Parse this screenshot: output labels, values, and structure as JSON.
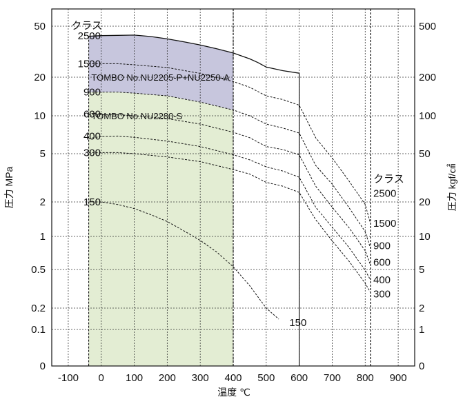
{
  "chart_data": {
    "type": "line",
    "title": "",
    "xlabel": "温度 ℃",
    "ylabel_left": "圧力 MPa",
    "ylabel_right": "圧力 kgf/㎠",
    "x_range": [
      -150,
      950
    ],
    "x_ticks": [
      -100,
      0,
      100,
      200,
      300,
      400,
      500,
      600,
      700,
      800,
      900
    ],
    "y_scale": "log",
    "y_ticks_left": [
      {
        "v": 50,
        "label": "50"
      },
      {
        "v": 20,
        "label": "20"
      },
      {
        "v": 10,
        "label": "10"
      },
      {
        "v": 5,
        "label": "5"
      },
      {
        "v": 2,
        "label": "2"
      },
      {
        "v": 1,
        "label": "1"
      },
      {
        "v": 0.5,
        "label": "0.5"
      },
      {
        "v": 0.2,
        "label": "0.2"
      },
      {
        "v": 0.1,
        "label": "0.1"
      },
      {
        "v": 0.03,
        "label": "0"
      }
    ],
    "y_ticks_right": [
      {
        "v": 50,
        "label": "500"
      },
      {
        "v": 20,
        "label": "200"
      },
      {
        "v": 10,
        "label": "100"
      },
      {
        "v": 5,
        "label": "50"
      },
      {
        "v": 2,
        "label": "20"
      },
      {
        "v": 1,
        "label": "10"
      },
      {
        "v": 0.5,
        "label": "5"
      },
      {
        "v": 0.2,
        "label": "2"
      },
      {
        "v": 0.1,
        "label": "1"
      },
      {
        "v": 0.03,
        "label": "0"
      }
    ],
    "grid": true,
    "class_header": "クラス",
    "left_class_labels": [
      {
        "label": "2500",
        "y": 42
      },
      {
        "label": "1500",
        "y": 25.5
      },
      {
        "label": "900",
        "y": 15.3
      },
      {
        "label": "600",
        "y": 10.3
      },
      {
        "label": "400",
        "y": 6.9
      },
      {
        "label": "300",
        "y": 5.1
      },
      {
        "label": "150",
        "y": 2.0
      }
    ],
    "right_class_labels": [
      {
        "label": "2500",
        "y": 2.35
      },
      {
        "label": "1500",
        "y": 1.3
      },
      {
        "label": "900",
        "y": 0.82
      },
      {
        "label": "600",
        "y": 0.58
      },
      {
        "label": "400",
        "y": 0.39
      },
      {
        "label": "300",
        "y": 0.28
      }
    ],
    "end_label_150": {
      "label": "150",
      "x": 570,
      "y": 0.125
    },
    "series": [
      {
        "class": "2500",
        "style": "solid",
        "x": [
          -38,
          0,
          50,
          100,
          150,
          200,
          250,
          300,
          350,
          400,
          450,
          475,
          500,
          550,
          600
        ],
        "y": [
          41.7,
          42.2,
          42.4,
          42.6,
          41.5,
          39.8,
          37.8,
          35.7,
          33.3,
          30.9,
          27.8,
          26.0,
          24.0,
          22.5,
          21.5
        ]
      },
      {
        "class": "1500",
        "style": "dashed",
        "x": [
          -38,
          50,
          100,
          200,
          300,
          400,
          450,
          500,
          550,
          600,
          650,
          700,
          750,
          800,
          816
        ],
        "y": [
          25.5,
          25.5,
          25.0,
          23.8,
          21.4,
          18.5,
          16.7,
          14.3,
          13.4,
          12.1,
          6.7,
          4.6,
          3.0,
          1.9,
          1.3
        ]
      },
      {
        "class": "900",
        "style": "dashed",
        "x": [
          -38,
          50,
          100,
          200,
          300,
          400,
          450,
          500,
          550,
          600,
          650,
          700,
          750,
          800,
          816
        ],
        "y": [
          15.3,
          15.3,
          15.0,
          14.3,
          12.8,
          11.1,
          10.0,
          8.6,
          8.0,
          7.3,
          4.0,
          2.8,
          1.8,
          1.1,
          0.78
        ]
      },
      {
        "class": "600",
        "style": "dashed",
        "x": [
          -38,
          50,
          100,
          200,
          300,
          400,
          450,
          500,
          550,
          600,
          650,
          700,
          750,
          800,
          816
        ],
        "y": [
          10.2,
          10.2,
          10.0,
          9.5,
          8.6,
          7.4,
          6.7,
          5.7,
          5.4,
          4.9,
          2.7,
          1.8,
          1.2,
          0.74,
          0.55
        ]
      },
      {
        "class": "400",
        "style": "dashed",
        "x": [
          -38,
          0,
          50,
          100,
          200,
          300,
          400,
          450,
          500,
          550,
          600,
          650,
          700,
          750,
          800,
          816
        ],
        "y": [
          6.6,
          6.85,
          6.9,
          6.75,
          6.3,
          5.7,
          4.9,
          4.45,
          3.9,
          3.6,
          3.2,
          1.8,
          1.2,
          0.8,
          0.49,
          0.39
        ]
      },
      {
        "class": "300",
        "style": "dashed",
        "x": [
          -38,
          50,
          100,
          200,
          300,
          400,
          450,
          500,
          550,
          600,
          650,
          700,
          750,
          800,
          816
        ],
        "y": [
          5.1,
          5.1,
          5.0,
          4.7,
          4.3,
          3.7,
          3.4,
          2.9,
          2.7,
          2.4,
          1.4,
          0.91,
          0.6,
          0.36,
          0.29
        ]
      },
      {
        "class": "150",
        "style": "dashed",
        "x": [
          -38,
          0,
          50,
          100,
          150,
          200,
          250,
          300,
          350,
          400,
          450,
          500,
          538
        ],
        "y": [
          2.0,
          2.0,
          1.9,
          1.75,
          1.55,
          1.35,
          1.12,
          0.92,
          0.72,
          0.53,
          0.34,
          0.2,
          0.14
        ]
      }
    ],
    "regions": [
      {
        "label": "TOMBO No.NU2205-P+NU2250-A",
        "x_min": -38,
        "x_max": 400,
        "y_bottom": "class 900 line",
        "y_top": "class 2500 line",
        "color": "#c7c6dd"
      },
      {
        "label": "TOMBO No.NU2280-S",
        "x_min": -38,
        "x_max": 400,
        "y_bottom": 0.03,
        "y_top": "class 900 line",
        "color": "#e3edd3"
      }
    ],
    "vertical_lines": [
      {
        "x": 400,
        "style": "dashed"
      },
      {
        "x": 600,
        "style": "solid",
        "y_top": 21.5
      },
      {
        "x": 816,
        "style": "dashed"
      }
    ],
    "series_label_positions": [
      {
        "label": "TOMBO No.NU2205-P+NU2250-A",
        "x": -30,
        "y": 20
      },
      {
        "label": "TOMBO No.NU2280-S",
        "x": -30,
        "y": 10
      }
    ]
  }
}
